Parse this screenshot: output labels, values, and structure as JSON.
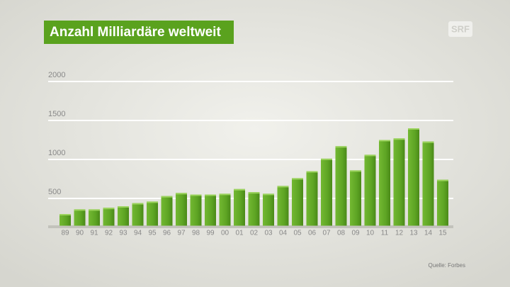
{
  "chart_data": {
    "type": "bar",
    "title": "Anzahl Milliardäre weltweit",
    "logo": "SRF",
    "source": "Quelle: Forbes",
    "categories": [
      "89",
      "90",
      "91",
      "92",
      "93",
      "94",
      "95",
      "96",
      "97",
      "98",
      "99",
      "00",
      "01",
      "02",
      "03",
      "04",
      "05",
      "06",
      "07",
      "08",
      "09",
      "10",
      "11",
      "12",
      "13",
      "14",
      "15"
    ],
    "values": [
      300,
      360,
      360,
      380,
      400,
      440,
      460,
      530,
      570,
      550,
      550,
      560,
      620,
      580,
      560,
      660,
      760,
      850,
      1010,
      1170,
      860,
      1060,
      1250,
      1270,
      1400,
      1230,
      740
    ],
    "color": "#5ea524",
    "ylim": [
      150,
      2100
    ],
    "yticks": [
      500,
      1000,
      1500,
      2000
    ],
    "grid": true
  }
}
